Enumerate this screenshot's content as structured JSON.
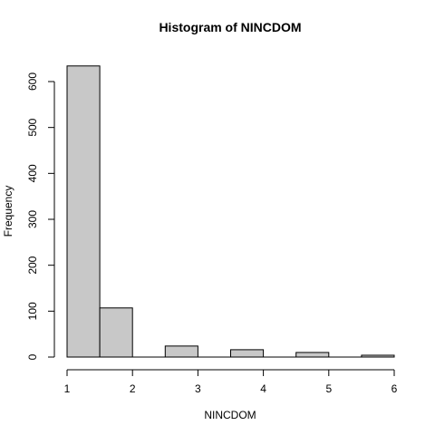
{
  "chart_data": {
    "type": "bar",
    "title": "Histogram of NINCDOM",
    "xlabel": "NINCDOM",
    "ylabel": "Frequency",
    "bin_edges": [
      1,
      1.5,
      2,
      2.5,
      3,
      3.5,
      4,
      4.5,
      5,
      5.5,
      6
    ],
    "values": [
      634,
      107,
      0,
      24,
      0,
      16,
      0,
      10,
      0,
      4
    ],
    "xlim": [
      1,
      6
    ],
    "ylim": [
      0,
      640
    ],
    "x_ticks": [
      "1",
      "2",
      "3",
      "4",
      "5",
      "6"
    ],
    "y_ticks": [
      "0",
      "100",
      "200",
      "300",
      "400",
      "500",
      "600"
    ],
    "bar_color": "#c8c8c8",
    "grid": false,
    "legend": "none"
  }
}
